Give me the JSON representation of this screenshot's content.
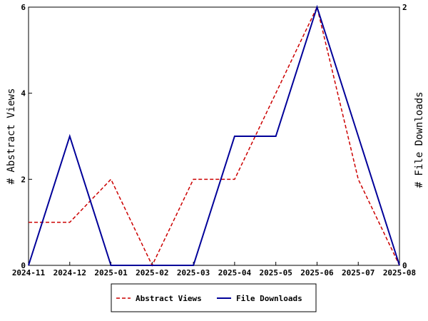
{
  "chart_data": {
    "type": "line",
    "categories": [
      "2024-11",
      "2024-12",
      "2025-01",
      "2025-02",
      "2025-03",
      "2025-04",
      "2025-05",
      "2025-06",
      "2025-07",
      "2025-08"
    ],
    "series": [
      {
        "name": "Abstract Views",
        "axis": "left",
        "color": "#cc0000",
        "line_style": "dashed",
        "points": [
          {
            "x": "2024-11",
            "y": 1
          },
          {
            "x": "2024-12",
            "y": 1
          },
          {
            "x": "2025-01",
            "y": 2
          },
          {
            "x": "2025-02",
            "y": 0
          },
          {
            "x": "2025-03",
            "y": 2
          },
          {
            "x": "2025-04",
            "y": 2
          },
          {
            "x": "2025-05",
            "y": 4
          },
          {
            "x": "2025-06",
            "y": 6
          },
          {
            "x": "2025-07",
            "y": 2
          },
          {
            "x": "2025-08",
            "y": 0
          }
        ]
      },
      {
        "name": "File Downloads",
        "axis": "right",
        "color": "#000099",
        "line_style": "solid",
        "points": [
          {
            "x": "2024-11",
            "y": 0
          },
          {
            "x": "2024-12",
            "y": 1
          },
          {
            "x": "2025-01",
            "y": 0
          },
          {
            "x": "2025-02",
            "y": 0
          },
          {
            "x": "2025-03",
            "y": 0
          },
          {
            "x": "2025-04",
            "y": 1
          },
          {
            "x": "2025-05",
            "y": 1
          },
          {
            "x": "2025-06",
            "y": 2
          },
          {
            "x": "2025-07",
            "y": 1
          },
          {
            "x": "2025-08",
            "y": 0
          }
        ]
      }
    ],
    "y_left": {
      "label": "# Abstract Views",
      "ticks": [
        0,
        2,
        4,
        6
      ],
      "ylim": [
        0,
        6
      ]
    },
    "y_right": {
      "label": "# File Downloads",
      "ticks": [
        0,
        2
      ],
      "ylim": [
        0,
        2
      ]
    },
    "grid": false,
    "legend_position": "bottom-center"
  }
}
